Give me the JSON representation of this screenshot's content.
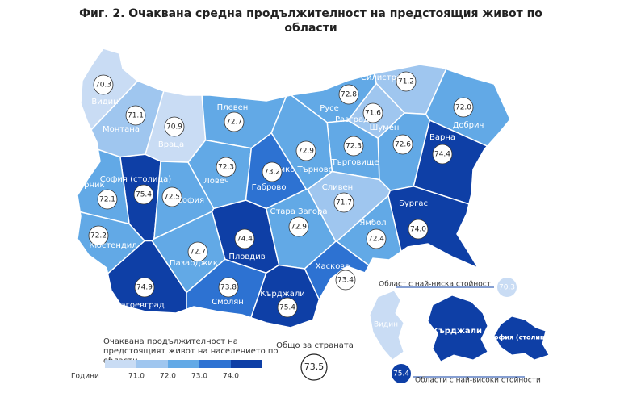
{
  "title": "Фиг. 2. Очаквана средна продължителност на предстоящия живот по области",
  "regions": [
    {
      "name": "Видин",
      "value": 70.3
    },
    {
      "name": "Монтана",
      "value": 71.1
    },
    {
      "name": "Враца",
      "value": 70.9
    },
    {
      "name": "Плевен",
      "value": 72.7
    },
    {
      "name": "Русе",
      "value": 72.8
    },
    {
      "name": "Силистра",
      "value": 71.2
    },
    {
      "name": "Разград",
      "value": 71.6
    },
    {
      "name": "Добрич",
      "value": 72,
      "value_label": "72.0"
    },
    {
      "name": "Шумен",
      "value": 72.6
    },
    {
      "name": "Търговище",
      "value": 72.3
    },
    {
      "name": "Варна",
      "value": 74.4
    },
    {
      "name": "Велико Търново",
      "value": 72.9
    },
    {
      "name": "Ловеч",
      "value": 72.3
    },
    {
      "name": "Габрово",
      "value": 73.2
    },
    {
      "name": "София (столица)",
      "value": 75.4
    },
    {
      "name": "София",
      "value": 72.5
    },
    {
      "name": "Перник",
      "value": 72.1
    },
    {
      "name": "Кюстендил",
      "value": 72.2
    },
    {
      "name": "Сливен",
      "value": 71.7
    },
    {
      "name": "Ямбол",
      "value": 72.4
    },
    {
      "name": "Бургас",
      "value": 74,
      "value_label": "74.0"
    },
    {
      "name": "Стара Загора",
      "value": 72.9
    },
    {
      "name": "Пловдив",
      "value": 74.4
    },
    {
      "name": "Пазарджик",
      "value": 72.7
    },
    {
      "name": "Хасково",
      "value": 73.4
    },
    {
      "name": "Благоевград",
      "value": 74.9
    },
    {
      "name": "Смолян",
      "value": 73.8
    },
    {
      "name": "Кърджали",
      "value": 75.4
    }
  ],
  "legend": {
    "title": "Очаквана продължителност на предстоящият живот на населението по области",
    "unit_label": "Години",
    "thresholds": [
      {
        "value": 71,
        "label": "71.0"
      },
      {
        "value": 72,
        "label": "72.0"
      },
      {
        "value": 73,
        "label": "73.0"
      },
      {
        "value": 74,
        "label": "74.0"
      }
    ],
    "colors": [
      "#c9dcf4",
      "#9fc6ef",
      "#62a9e6",
      "#2d72d2",
      "#0e3fa6"
    ]
  },
  "national": {
    "label": "Общо за страната",
    "value": 73.5
  },
  "inset": {
    "lowest_label": "Област с най-ниска стойност",
    "lowest_value": 70.3,
    "lowest_region": "Видин",
    "highest_label": "Области с най-високи стойности",
    "highest_value": 75.4,
    "highest_regions": [
      "Кърджали",
      "София (столица)"
    ]
  }
}
